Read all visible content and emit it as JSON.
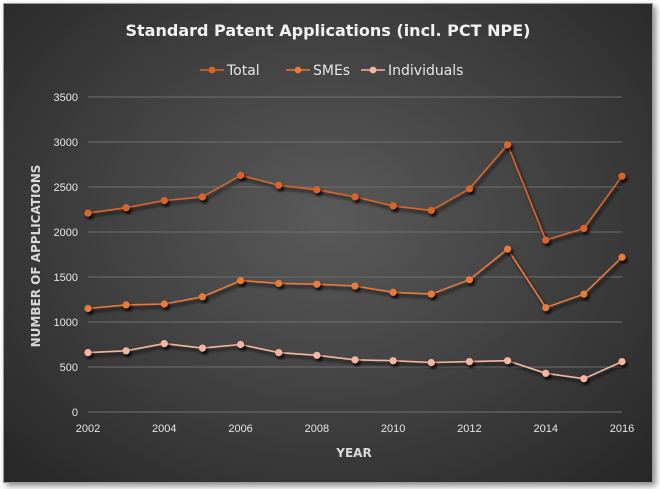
{
  "chart_data": {
    "type": "line",
    "title": "Standard Patent Applications (incl. PCT NPE)",
    "xlabel": "YEAR",
    "ylabel": "NUMBER OF APPLICATIONS",
    "x": [
      2002,
      2003,
      2004,
      2005,
      2006,
      2007,
      2008,
      2009,
      2010,
      2011,
      2012,
      2013,
      2014,
      2015,
      2016
    ],
    "xticks": [
      2002,
      2004,
      2006,
      2008,
      2010,
      2012,
      2014,
      2016
    ],
    "yticks": [
      0,
      500,
      1000,
      1500,
      2000,
      2500,
      3000,
      3500
    ],
    "ylim": [
      0,
      3500
    ],
    "xlim": [
      2002,
      2016
    ],
    "grid": true,
    "legend_position": "top",
    "series": [
      {
        "name": "Total",
        "color": "#d9652a",
        "values": [
          2210,
          2270,
          2350,
          2390,
          2630,
          2520,
          2470,
          2390,
          2290,
          2240,
          2480,
          2970,
          1910,
          2040,
          2620
        ]
      },
      {
        "name": "SMEs",
        "color": "#e87a3a",
        "values": [
          1150,
          1190,
          1200,
          1280,
          1460,
          1430,
          1420,
          1400,
          1330,
          1310,
          1470,
          1810,
          1160,
          1310,
          1720
        ]
      },
      {
        "name": "Individuals",
        "color": "#f3b6a0",
        "values": [
          660,
          680,
          760,
          710,
          750,
          660,
          630,
          580,
          570,
          550,
          560,
          570,
          430,
          370,
          560
        ]
      }
    ]
  }
}
